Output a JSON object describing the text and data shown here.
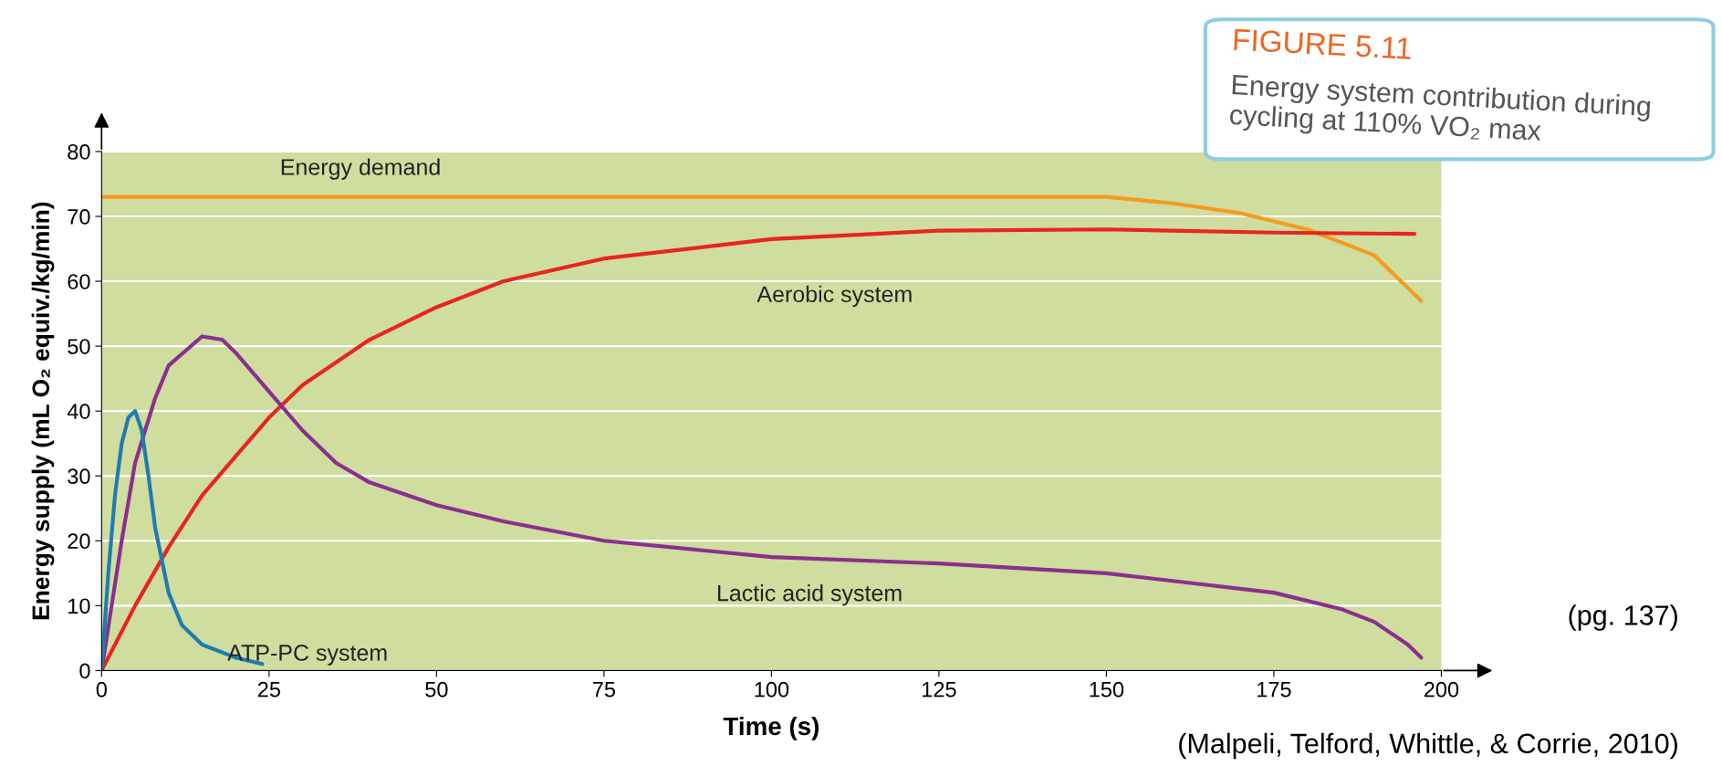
{
  "chart_data": {
    "type": "line",
    "title": "FIGURE 5.11",
    "subtitle": "Energy system contribution during cycling at 110% VO₂ max",
    "xlabel": "Time (s)",
    "ylabel": "Energy supply (mL O₂ equiv./kg/min)",
    "xlim": [
      0,
      200
    ],
    "ylim": [
      0,
      80
    ],
    "xticks": [
      0,
      25,
      50,
      75,
      100,
      125,
      150,
      175,
      200
    ],
    "yticks": [
      0,
      10,
      20,
      30,
      40,
      50,
      60,
      70,
      80
    ],
    "grid": "y",
    "series": [
      {
        "name": "Energy demand",
        "color": "#f39c1e",
        "x": [
          0,
          25,
          50,
          100,
          150,
          160,
          170,
          180,
          190,
          197
        ],
        "values": [
          73,
          73,
          73,
          73,
          73,
          72,
          70.5,
          68,
          64,
          57
        ]
      },
      {
        "name": "Aerobic system",
        "color": "#e8251e",
        "x": [
          0,
          5,
          10,
          15,
          20,
          25,
          30,
          40,
          50,
          60,
          75,
          100,
          125,
          150,
          175,
          196
        ],
        "values": [
          0,
          10,
          19,
          27,
          33,
          39,
          44,
          51,
          56,
          60,
          63.5,
          66.5,
          67.8,
          68,
          67.5,
          67.3
        ]
      },
      {
        "name": "Lactic acid system",
        "color": "#8b2f8f",
        "x": [
          0,
          3,
          5,
          8,
          10,
          15,
          18,
          20,
          25,
          30,
          35,
          40,
          50,
          60,
          75,
          100,
          125,
          150,
          175,
          185,
          190,
          195,
          197
        ],
        "values": [
          0,
          20,
          32,
          42,
          47,
          51.5,
          51,
          49,
          43,
          37,
          32,
          29,
          25.5,
          23,
          20,
          17.5,
          16.5,
          15,
          12,
          9.5,
          7.5,
          4,
          2
        ]
      },
      {
        "name": "ATP-PC system",
        "color": "#1f7bb0",
        "x": [
          0,
          1,
          2,
          3,
          4,
          5,
          6,
          7,
          8,
          10,
          12,
          15,
          20,
          24
        ],
        "values": [
          0,
          15,
          27,
          35,
          39,
          40,
          37,
          30,
          22,
          12,
          7,
          4,
          2,
          1
        ]
      }
    ],
    "annotations": [
      "(pg. 137)",
      "(Malpeli, Telford, Whittle, & Corrie, 2010)"
    ]
  }
}
